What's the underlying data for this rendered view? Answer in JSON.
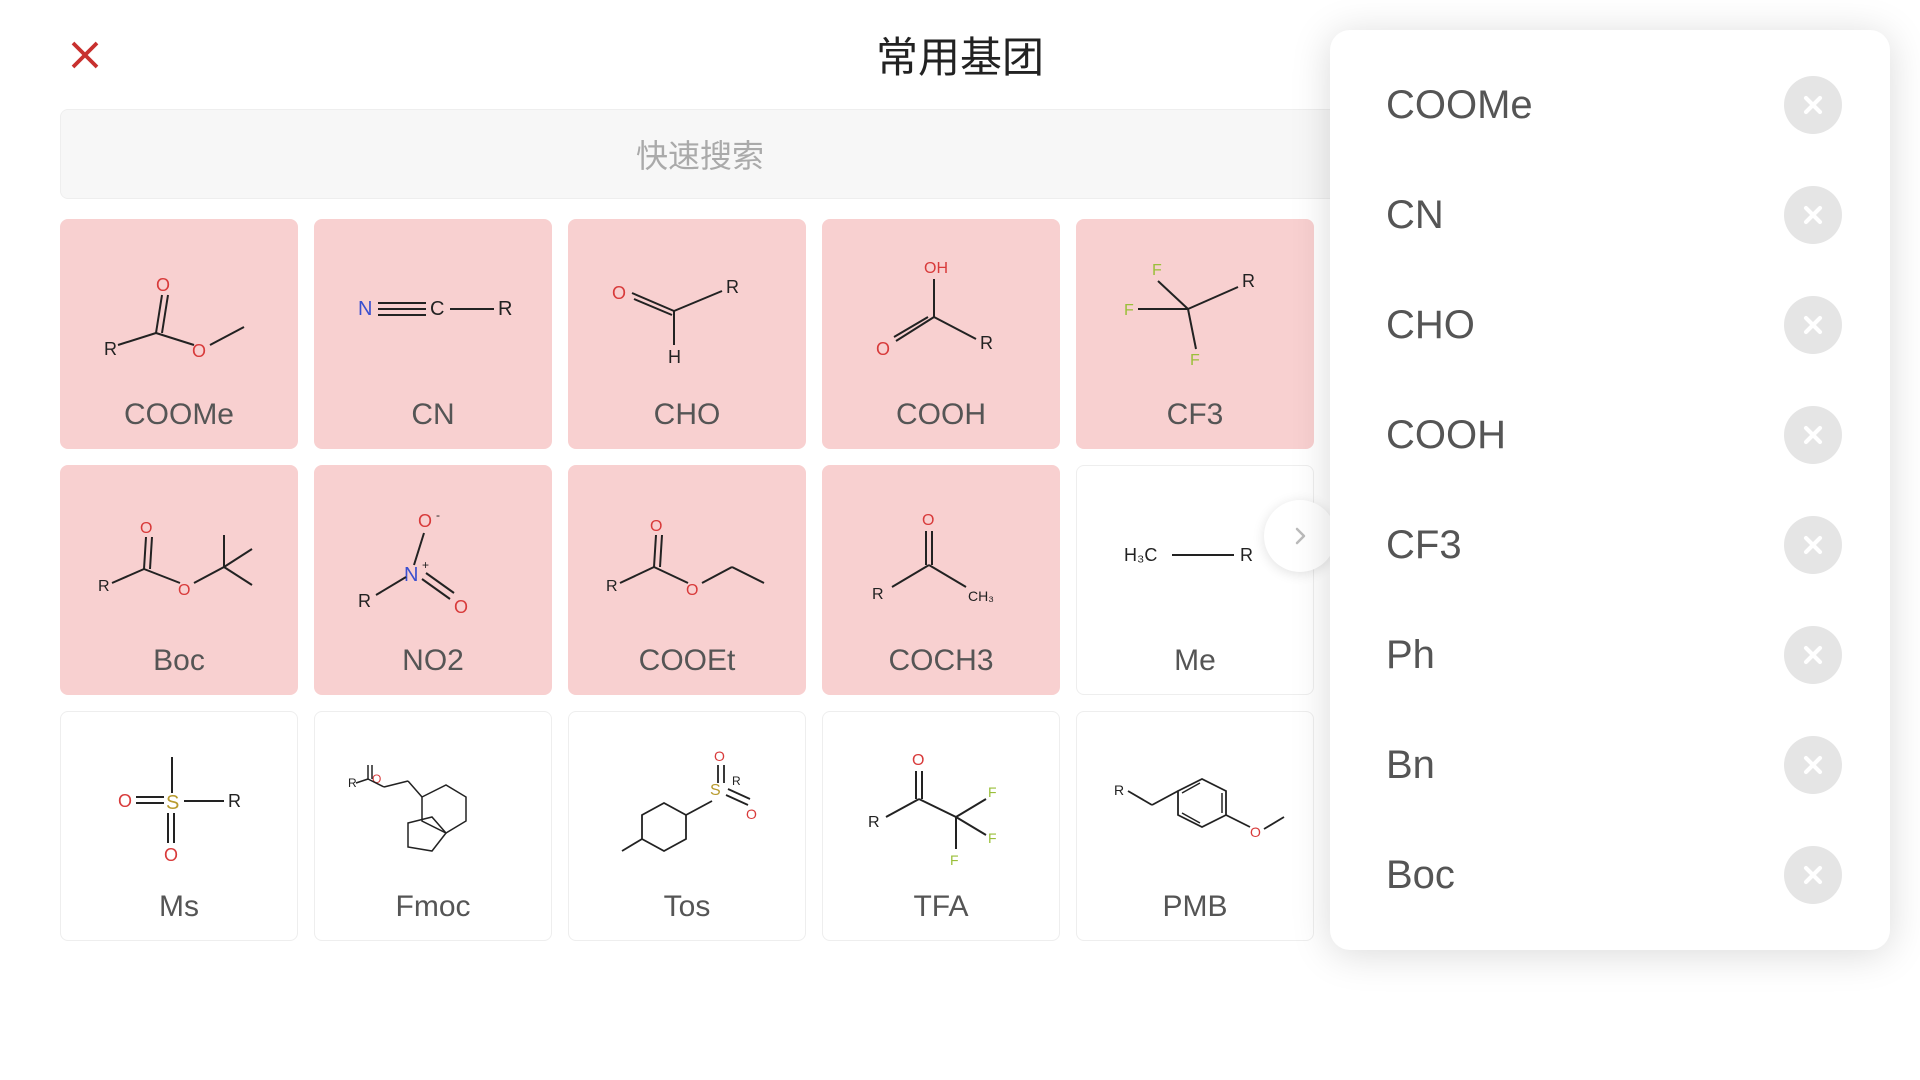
{
  "colors": {
    "close_icon": "#c8302e",
    "title_text": "#222222",
    "search_bg": "#f7f7f7",
    "search_placeholder": "#aaaaaa",
    "card_border": "#eeeeee",
    "card_selected_bg": "#f8d0d0",
    "card_label": "#555555",
    "chem_red": "#d83a3a",
    "chem_blue": "#3a4fcf",
    "chem_green": "#9abf3a",
    "chem_black": "#222222",
    "panel_bg": "#ffffff",
    "panel_shadow": "rgba(0,0,0,0.15)",
    "panel_del_bg": "#e5e5e5",
    "panel_del_x": "#ffffff",
    "chevron": "#bbbbbb"
  },
  "header": {
    "title": "常用基团"
  },
  "search": {
    "placeholder": "快速搜索"
  },
  "cards": [
    {
      "label": "COOMe",
      "selected": true
    },
    {
      "label": "CN",
      "selected": true
    },
    {
      "label": "CHO",
      "selected": true
    },
    {
      "label": "COOH",
      "selected": true
    },
    {
      "label": "CF3",
      "selected": true
    },
    {
      "label": "Boc",
      "selected": true
    },
    {
      "label": "NO2",
      "selected": true
    },
    {
      "label": "COOEt",
      "selected": true
    },
    {
      "label": "COCH3",
      "selected": true
    },
    {
      "label": "Me",
      "selected": false
    },
    {
      "label": "Ms",
      "selected": false
    },
    {
      "label": "Fmoc",
      "selected": false
    },
    {
      "label": "Tos",
      "selected": false
    },
    {
      "label": "TFA",
      "selected": false
    },
    {
      "label": "PMB",
      "selected": false
    }
  ],
  "panel_items": [
    {
      "label": "COOMe"
    },
    {
      "label": "CN"
    },
    {
      "label": "CHO"
    },
    {
      "label": "COOH"
    },
    {
      "label": "CF3"
    },
    {
      "label": "Ph"
    },
    {
      "label": "Bn"
    },
    {
      "label": "Boc"
    }
  ]
}
